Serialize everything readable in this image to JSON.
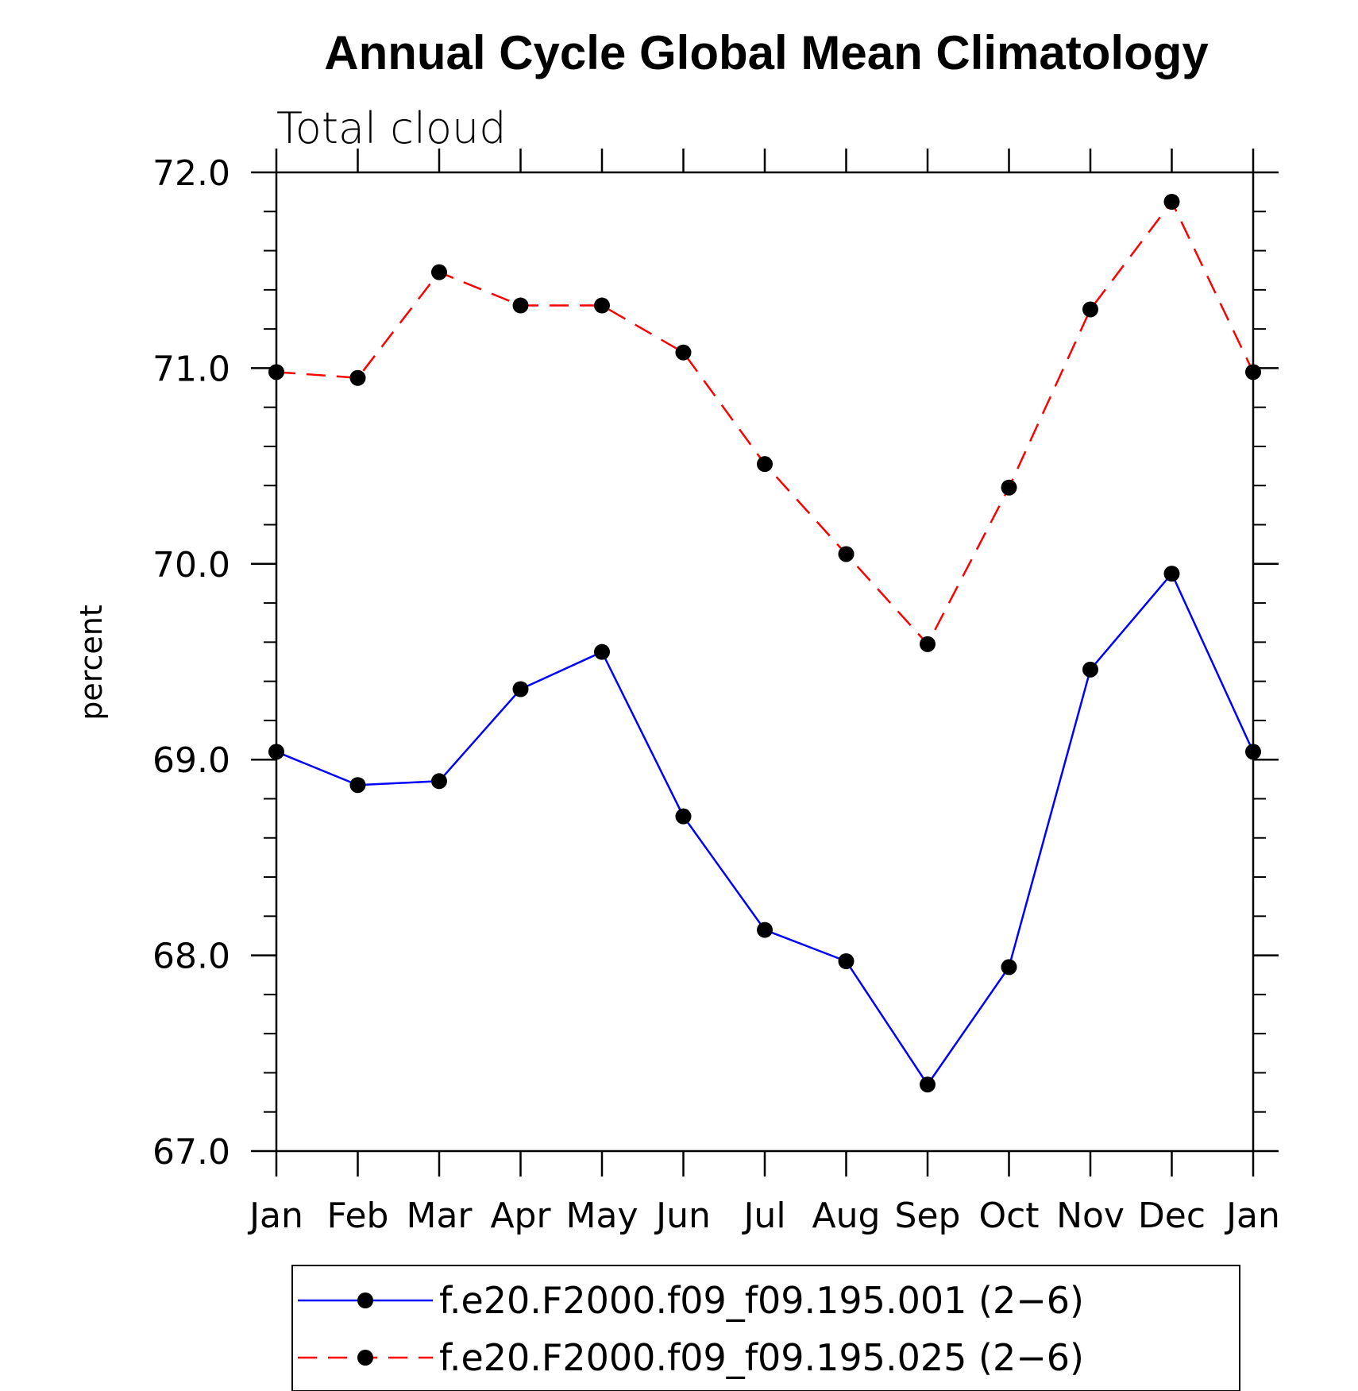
{
  "chart_data": {
    "type": "line",
    "title": "Annual Cycle Global Mean Climatology",
    "subtitle": "Total cloud",
    "xlabel": "",
    "ylabel": "percent",
    "categories": [
      "Jan",
      "Feb",
      "Mar",
      "Apr",
      "May",
      "Jun",
      "Jul",
      "Aug",
      "Sep",
      "Oct",
      "Nov",
      "Dec",
      "Jan"
    ],
    "ylim": [
      67.0,
      72.0
    ],
    "yticks": [
      "67.0",
      "68.0",
      "69.0",
      "70.0",
      "71.0",
      "72.0"
    ],
    "grid": false,
    "legend_position": "bottom",
    "series": [
      {
        "name": "f.e20.F2000.f09_f09.195.001 (2−6)",
        "color": "#0000ff",
        "line_style": "solid",
        "marker": "dot",
        "values": [
          69.04,
          68.87,
          68.89,
          69.36,
          69.55,
          68.71,
          68.13,
          67.97,
          67.34,
          67.94,
          69.46,
          69.95,
          69.04
        ]
      },
      {
        "name": "f.e20.F2000.f09_f09.195.025 (2−6)",
        "color": "#ff0000",
        "line_style": "dashed",
        "marker": "dot",
        "values": [
          70.98,
          70.95,
          71.49,
          71.32,
          71.32,
          71.08,
          70.51,
          70.05,
          69.59,
          70.39,
          71.3,
          71.85,
          70.98
        ]
      }
    ]
  }
}
